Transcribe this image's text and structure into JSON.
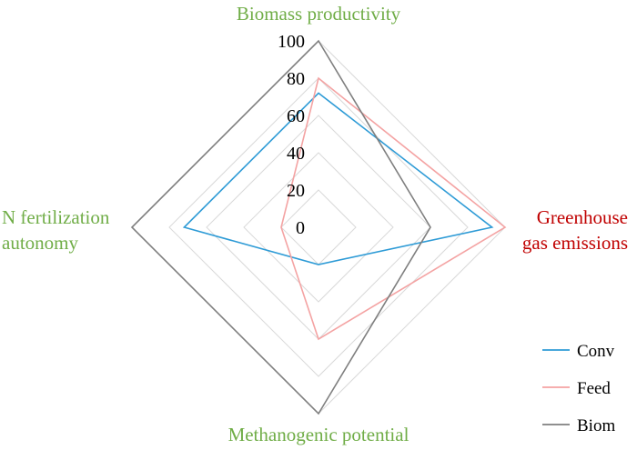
{
  "chart_data": {
    "type": "radar",
    "axes": [
      {
        "label_lines": [
          "Biomass productivity"
        ],
        "color": "#70ad47"
      },
      {
        "label_lines": [
          "Greenhouse",
          "gas emissions"
        ],
        "color": "#c00000"
      },
      {
        "label_lines": [
          "Methanogenic potential"
        ],
        "color": "#70ad47"
      },
      {
        "label_lines": [
          "N fertilization",
          "autonomy"
        ],
        "color": "#70ad47"
      }
    ],
    "range": [
      0,
      100
    ],
    "ticks": [
      "0",
      "20",
      "40",
      "60",
      "80",
      "100"
    ],
    "grid_color": "#d9d9d9",
    "series": [
      {
        "name": "Conv",
        "color": "#2e9bd6",
        "values": [
          72,
          93,
          20,
          72
        ]
      },
      {
        "name": "Feed",
        "color": "#f4a3a3",
        "values": [
          80,
          100,
          60,
          20
        ]
      },
      {
        "name": "Biom",
        "color": "#7f7f7f",
        "values": [
          100,
          60,
          100,
          100
        ]
      }
    ],
    "legend_position": "bottom-right"
  }
}
